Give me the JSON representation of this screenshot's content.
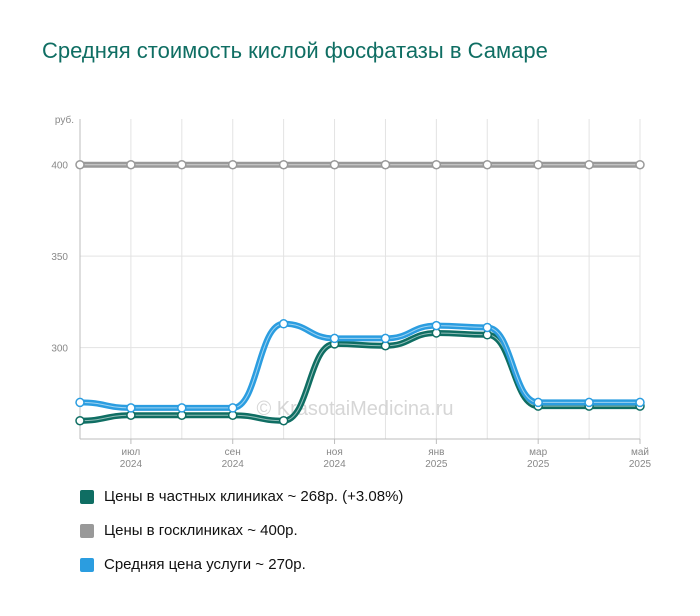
{
  "title": "Средняя стоимость кислой фосфатазы в Самаре",
  "watermark": "© KrasotaiMedicina.ru",
  "chart_data": {
    "type": "line",
    "y_unit": "руб.",
    "ylim": [
      250,
      425
    ],
    "y_ticks": [
      300,
      350,
      400
    ],
    "y_tick_labels": [
      "300",
      "350",
      "400"
    ],
    "x": [
      "2024-06",
      "2024-07",
      "2024-08",
      "2024-09",
      "2024-10",
      "2024-11",
      "2024-12",
      "2025-01",
      "2025-02",
      "2025-03",
      "2025-04",
      "2025-05"
    ],
    "x_tick_labels": [
      {
        "index": 1,
        "month": "июл",
        "year": "2024"
      },
      {
        "index": 3,
        "month": "сен",
        "year": "2024"
      },
      {
        "index": 5,
        "month": "ноя",
        "year": "2024"
      },
      {
        "index": 7,
        "month": "янв",
        "year": "2025"
      },
      {
        "index": 9,
        "month": "мар",
        "year": "2025"
      },
      {
        "index": 11,
        "month": "май",
        "year": "2025"
      }
    ],
    "grid": true,
    "legend_position": "bottom",
    "series": [
      {
        "name": "Цены в госклиниках ~ 400р.",
        "color": "#999999",
        "values": [
          400,
          400,
          400,
          400,
          400,
          400,
          400,
          400,
          400,
          400,
          400,
          400
        ]
      },
      {
        "name": "Цены в частных клиниках ~ 268р. (+3.08%)",
        "color": "#0f6e63",
        "values": [
          260,
          263,
          263,
          263,
          260,
          302,
          301,
          308,
          307,
          268,
          268,
          268
        ]
      },
      {
        "name": "Средняя цена услуги ~ 270р.",
        "color": "#2b9de0",
        "values": [
          270,
          267,
          267,
          267,
          313,
          305,
          305,
          312,
          311,
          270,
          270,
          270
        ]
      }
    ]
  },
  "legend": [
    {
      "label": "Цены в частных клиниках ~ 268р. (+3.08%)",
      "color": "#0f6e63"
    },
    {
      "label": "Цены в госклиниках ~ 400р.",
      "color": "#999999"
    },
    {
      "label": "Средняя цена услуги ~ 270р.",
      "color": "#2b9de0"
    }
  ]
}
